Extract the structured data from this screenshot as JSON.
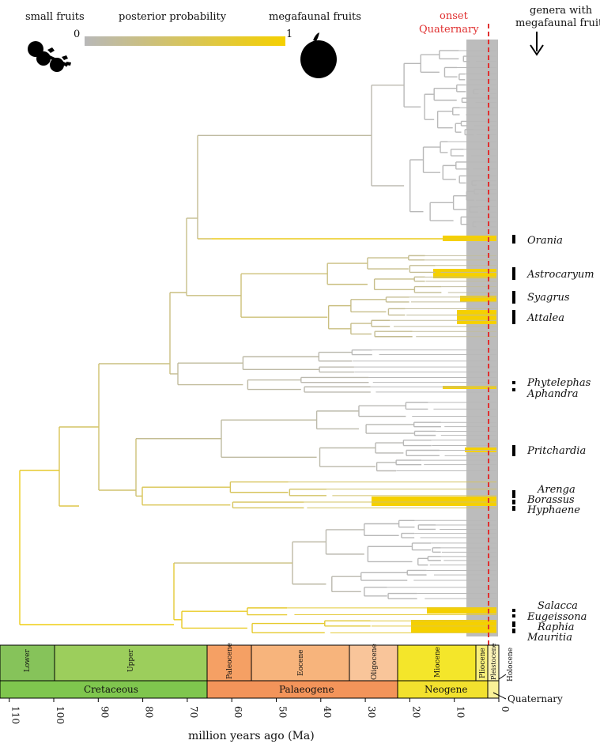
{
  "legend": {
    "left_label": "small fruits",
    "center_label": "posterior probability",
    "right_label": "megafaunal fruits",
    "scale_min": "0",
    "scale_max": "1",
    "color_low": "#b8b8b8",
    "color_high": "#f5d000",
    "small_fruit_icon": "small-fruits-silhouette-icon",
    "megafaunal_fruit_icon": "megafaunal-fruit-silhouette-icon"
  },
  "onset": {
    "label_line1": "onset",
    "label_line2": "Quaternary",
    "color": "#e03030"
  },
  "genera_header": {
    "line1": "genera with",
    "line2": "megafaunal fruits",
    "arrow_icon": "down-arrow-icon"
  },
  "genera": [
    "Orania",
    "Astrocaryum",
    "Syagrus",
    "Attalea",
    "Phytelephas",
    "Aphandra",
    "Pritchardia",
    "Arenga",
    "Borassus",
    "Hyphaene",
    "Salacca",
    "Eugeissona",
    "Raphia",
    "Mauritia"
  ],
  "timescale": {
    "series": [
      {
        "name": "Lower",
        "start_ma": 110,
        "end_ma": 100.5,
        "color": "#86c35a"
      },
      {
        "name": "Upper",
        "start_ma": 100.5,
        "end_ma": 66,
        "color": "#9cce5c"
      },
      {
        "name": "Paleocene",
        "start_ma": 66,
        "end_ma": 56,
        "color": "#f5a064"
      },
      {
        "name": "Eocene",
        "start_ma": 56,
        "end_ma": 33.9,
        "color": "#f7b47c"
      },
      {
        "name": "Oligocene",
        "start_ma": 33.9,
        "end_ma": 23,
        "color": "#f9c59a"
      },
      {
        "name": "Miocene",
        "start_ma": 23,
        "end_ma": 5.3,
        "color": "#f4e62a"
      },
      {
        "name": "Pliocene",
        "start_ma": 5.3,
        "end_ma": 2.6,
        "color": "#f8f07a"
      },
      {
        "name": "Pleistocene",
        "start_ma": 2.6,
        "end_ma": 0.2,
        "color": "#fbf3b8"
      }
    ],
    "holocene_label": "Holocene",
    "systems": [
      {
        "name": "Cretaceous",
        "start_ma": 110,
        "end_ma": 66,
        "color": "#7fc64e"
      },
      {
        "name": "Palaeogene",
        "start_ma": 66,
        "end_ma": 23,
        "color": "#f3945a"
      },
      {
        "name": "Neogene",
        "start_ma": 23,
        "end_ma": 2.6,
        "color": "#f2e12e"
      },
      {
        "name": "",
        "start_ma": 2.6,
        "end_ma": 0,
        "color": "#f9f197"
      }
    ],
    "quaternary_label": "Quaternary"
  },
  "axis": {
    "label": "million years ago (Ma)",
    "ticks": [
      "110",
      "100",
      "90",
      "80",
      "70",
      "60",
      "50",
      "40",
      "30",
      "20",
      "10",
      "0"
    ]
  }
}
